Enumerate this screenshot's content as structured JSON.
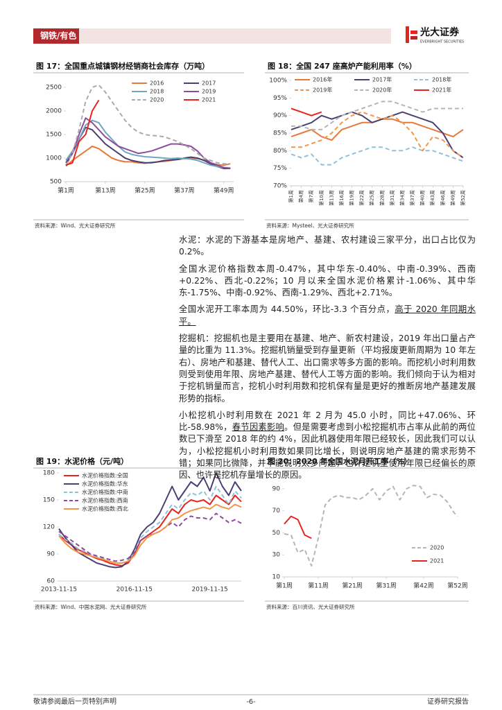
{
  "header": {
    "section": "钢铁/有色",
    "logo": "光大证券",
    "logo_en": "EVERBRIGHT SECURITIES"
  },
  "chart_data": [
    {
      "type": "line",
      "title": "图 17：全国重点城镇钢材经销商社会库存（万吨）",
      "source": "资料来源：Wind、光大证券研究所",
      "legend": "upper right",
      "x": [
        1,
        3,
        5,
        7,
        9,
        11,
        13,
        15,
        17,
        19,
        21,
        23,
        25,
        27,
        29,
        31,
        33,
        35,
        37,
        39,
        41,
        43,
        45,
        47,
        49,
        51
      ],
      "xlim": [
        1,
        52
      ],
      "xticks": [
        {
          "value": 1,
          "label": "第1周"
        },
        {
          "value": 13,
          "label": "第13周"
        },
        {
          "value": 25,
          "label": "第25周"
        },
        {
          "value": 37,
          "label": "第37周"
        },
        {
          "value": 49,
          "label": "第49周"
        }
      ],
      "ylim": [
        500,
        2500
      ],
      "yticks": [
        500,
        1000,
        1500,
        2000,
        2500
      ],
      "series": [
        {
          "name": "2016",
          "color": "#e8773a",
          "values": [
            830,
            950,
            1050,
            1150,
            1250,
            1200,
            1100,
            1000,
            950,
            920,
            920,
            900,
            890,
            910,
            920,
            930,
            950,
            970,
            990,
            1000,
            990,
            960,
            900,
            860,
            850,
            880
          ]
        },
        {
          "name": "2017",
          "color": "#4b3f72",
          "values": [
            900,
            1100,
            1400,
            1650,
            1600,
            1450,
            1300,
            1200,
            1100,
            1000,
            950,
            920,
            900,
            900,
            920,
            950,
            960,
            970,
            1000,
            1020,
            1000,
            950,
            880,
            820,
            780,
            780
          ]
        },
        {
          "name": "2018",
          "color": "#6fa6c0",
          "values": [
            950,
            1150,
            1400,
            1700,
            1800,
            1750,
            1550,
            1400,
            1250,
            1130,
            1080,
            1050,
            1030,
            1020,
            1010,
            1000,
            990,
            1000,
            990,
            980,
            950,
            900,
            850,
            820,
            800,
            790
          ]
        },
        {
          "name": "2019",
          "color": "#8e4b9e",
          "values": [
            850,
            1100,
            1500,
            1850,
            1750,
            1600,
            1450,
            1350,
            1250,
            1200,
            1150,
            1100,
            1120,
            1150,
            1200,
            1250,
            1300,
            1300,
            1280,
            1250,
            1150,
            1000,
            900,
            850,
            800,
            780
          ]
        },
        {
          "name": "2020",
          "color": "#aaaaaa",
          "dashed": true,
          "values": [
            850,
            1100,
            1600,
            2200,
            2500,
            2550,
            2400,
            2200,
            2000,
            1800,
            1650,
            1550,
            1500,
            1480,
            1470,
            1450,
            1400,
            1350,
            1280,
            1200,
            1100,
            1000,
            950,
            900,
            880,
            880
          ]
        },
        {
          "name": "2021",
          "color": "#e8231e",
          "values": [
            850,
            900,
            1350,
            1500,
            2000,
            2230,
            null,
            null,
            null,
            null,
            null,
            null,
            null,
            null,
            null,
            null,
            null,
            null,
            null,
            null,
            null,
            null,
            null,
            null,
            null,
            null
          ]
        }
      ]
    },
    {
      "type": "line",
      "title": "图 18：全国 247 座高炉产能利用率（%）",
      "source": "资料来源：Mysteel、光大证券研究所",
      "legend": "upper right",
      "x": [
        1,
        4,
        7,
        10,
        13,
        16,
        19,
        22,
        25,
        28,
        31,
        34,
        37,
        40,
        43,
        46,
        49,
        52
      ],
      "xlim": [
        1,
        52
      ],
      "xticks": [
        {
          "value": 1,
          "label": "第1周"
        },
        {
          "value": 4,
          "label": "第4周"
        },
        {
          "value": 7,
          "label": "第7周"
        },
        {
          "value": 10,
          "label": "第10周"
        },
        {
          "value": 13,
          "label": "第13周"
        },
        {
          "value": 16,
          "label": "第16周"
        },
        {
          "value": 19,
          "label": "第19周"
        },
        {
          "value": 22,
          "label": "第22周"
        },
        {
          "value": 25,
          "label": "第25周"
        },
        {
          "value": 28,
          "label": "第28周"
        },
        {
          "value": 31,
          "label": "第31周"
        },
        {
          "value": 34,
          "label": "第34周"
        },
        {
          "value": 37,
          "label": "第37周"
        },
        {
          "value": 40,
          "label": "第40周"
        },
        {
          "value": 43,
          "label": "第43周"
        },
        {
          "value": 46,
          "label": "第46周"
        },
        {
          "value": 49,
          "label": "第49周"
        },
        {
          "value": 52,
          "label": "第52周"
        }
      ],
      "ylim": [
        70,
        100
      ],
      "yticks": [
        {
          "value": 70,
          "label": "70%"
        },
        {
          "value": 75,
          "label": "75%"
        },
        {
          "value": 80,
          "label": "80%"
        },
        {
          "value": 85,
          "label": "85%"
        },
        {
          "value": 90,
          "label": "90%"
        },
        {
          "value": 95,
          "label": "95%"
        },
        {
          "value": 100,
          "label": "100%"
        }
      ],
      "series": [
        {
          "name": "2016年",
          "color": "#e8773a",
          "values": [
            84,
            85,
            86,
            84,
            83,
            86,
            87,
            88,
            88,
            89,
            89,
            88,
            88,
            87,
            86,
            85,
            84,
            86
          ]
        },
        {
          "name": "2017年",
          "color": "#4b3f72",
          "values": [
            86,
            87,
            88,
            90,
            89,
            90,
            91,
            90,
            88,
            89,
            90,
            91,
            90,
            89,
            88,
            85,
            80,
            78
          ]
        },
        {
          "name": "2018年",
          "color": "#8fc0dc",
          "dashed": true,
          "values": [
            79,
            78,
            79,
            76,
            76,
            78,
            79,
            80,
            81,
            81,
            80,
            80,
            81,
            80,
            80,
            79,
            78,
            77
          ]
        },
        {
          "name": "2019年",
          "color": "#f0964a",
          "dashed": true,
          "values": [
            81,
            81,
            82,
            83,
            85,
            88,
            90,
            91,
            90,
            89,
            90,
            88,
            85,
            80,
            84,
            83,
            80,
            78
          ]
        },
        {
          "name": "2020年",
          "color": "#b5b5b5",
          "dashed": true,
          "values": [
            87,
            87,
            86,
            86,
            88,
            90,
            91,
            92,
            93,
            94,
            94,
            93,
            92,
            91,
            92,
            92,
            92,
            92
          ]
        },
        {
          "name": "2021年",
          "color": "#e8231e",
          "values": [
            92,
            91,
            90,
            91,
            null,
            null,
            null,
            null,
            null,
            null,
            null,
            null,
            null,
            null,
            null,
            null,
            null,
            null
          ]
        }
      ]
    },
    {
      "type": "line",
      "title": "图 19：水泥价格（元/吨）",
      "source": "资料来源：Wind、中国水泥网、光大证券研究所",
      "legend": "upper left",
      "categories": [
        "2013-11-15",
        null,
        null,
        null,
        null,
        null,
        null,
        null,
        null,
        null,
        null,
        null,
        "2016-11-15",
        null,
        null,
        null,
        null,
        null,
        null,
        null,
        null,
        null,
        null,
        null,
        "2019-11-15",
        null,
        null,
        null,
        null,
        null
      ],
      "ylim": [
        60,
        180
      ],
      "yticks": [
        60,
        90,
        120,
        150,
        180
      ],
      "series": [
        {
          "name": "水泥价格指数:全国",
          "color": "#e8231e",
          "values": [
            112,
            105,
            100,
            95,
            92,
            88,
            85,
            83,
            80,
            78,
            77,
            80,
            90,
            105,
            110,
            115,
            120,
            130,
            140,
            135,
            145,
            150,
            148,
            150,
            145,
            155,
            150,
            145,
            155,
            148
          ]
        },
        {
          "name": "水泥价格指数:华东",
          "color": "#4b3f72",
          "values": [
            118,
            108,
            100,
            92,
            88,
            84,
            80,
            78,
            76,
            75,
            76,
            82,
            95,
            112,
            120,
            125,
            135,
            150,
            165,
            150,
            160,
            170,
            165,
            175,
            160,
            180,
            165,
            155,
            170,
            160
          ]
        },
        {
          "name": "水泥价格指数:中南",
          "color": "#8fc0dc",
          "dashed": true,
          "values": [
            112,
            106,
            102,
            96,
            93,
            90,
            87,
            85,
            82,
            80,
            80,
            82,
            92,
            108,
            115,
            120,
            125,
            135,
            145,
            140,
            150,
            158,
            155,
            160,
            150,
            165,
            155,
            145,
            160,
            152
          ]
        },
        {
          "name": "水泥价格指数:西南",
          "color": "#8e4b9e",
          "dashed": true,
          "values": [
            115,
            110,
            105,
            100,
            95,
            90,
            88,
            86,
            84,
            82,
            83,
            85,
            92,
            105,
            110,
            112,
            115,
            120,
            125,
            120,
            128,
            132,
            130,
            130,
            128,
            135,
            130,
            125,
            128,
            124
          ]
        },
        {
          "name": "水泥价格指数:西北",
          "color": "#f0964a",
          "values": [
            110,
            102,
            96,
            92,
            90,
            88,
            86,
            84,
            82,
            80,
            80,
            82,
            88,
            100,
            108,
            112,
            115,
            120,
            128,
            130,
            135,
            138,
            140,
            142,
            140,
            145,
            142,
            140,
            145,
            142
          ]
        }
      ]
    },
    {
      "type": "line",
      "title": "图 20：2020 年全国水泥月开工率（%）",
      "source": "资料来源：百川资讯、光大证券研究所",
      "legend": "lower right",
      "x": [
        1,
        3,
        5,
        7,
        9,
        11,
        13,
        15,
        17,
        19,
        21,
        23,
        25,
        27,
        29,
        31,
        33,
        35,
        37,
        39,
        41,
        43,
        45,
        47,
        49,
        51,
        52
      ],
      "xlim": [
        1,
        52
      ],
      "xticks": [
        {
          "value": 1,
          "label": "第1周"
        },
        {
          "value": 11,
          "label": "第11周"
        },
        {
          "value": 21,
          "label": "第21周"
        },
        {
          "value": 31,
          "label": "第31周"
        },
        {
          "value": 42,
          "label": "第42周"
        },
        {
          "value": 52,
          "label": "第52周"
        }
      ],
      "ylim": [
        10,
        100
      ],
      "yticks": [
        10,
        30,
        50,
        70,
        90
      ],
      "series": [
        {
          "name": "2020",
          "color": "#b5b5b5",
          "dashed": true,
          "values": [
            49,
            48,
            32,
            35,
            20,
            45,
            75,
            82,
            84,
            82,
            82,
            80,
            84,
            90,
            80,
            88,
            92,
            80,
            90,
            93,
            92,
            82,
            85,
            84,
            78,
            68,
            65
          ]
        },
        {
          "name": "2021",
          "color": "#e8231e",
          "values": [
            58,
            65,
            62,
            48,
            45,
            null,
            null,
            null,
            null,
            null,
            null,
            null,
            null,
            null,
            null,
            null,
            null,
            null,
            null,
            null,
            null,
            null,
            null,
            null,
            null,
            null,
            null
          ]
        }
      ]
    }
  ],
  "body": {
    "paragraphs": [
      [
        {
          "text": "水泥：水泥的下游基本是房地产、基建、农村建设三家平分，出口占比仅为 0.2%。"
        }
      ],
      [
        {
          "text": "全国水泥价格指数本周-0.47%，其中华东-0.40%、中南-0.39%、西南+0.22%、西北-0.22%；10 月以来全国水泥价格累计-1.06%、其中华东-1.75%、中南-0.92%、西南-1.29%、西北+2.71%。"
        }
      ],
      [
        {
          "text": "全国水泥开工率本周为 44.50%，环比-3.3 个百分点，"
        },
        {
          "text": "高于 2020 年同期水平。",
          "underline": true
        }
      ],
      [
        {
          "text": "挖掘机：挖掘机也是主要用在基建、地产、新农村建设，2019 年出口量占产量的比重为 11.3%。挖掘机销量受到存量更新（平均报废更新周期为 10 年左右）、房地产和基建、替代人工、出口需求等多方面的影响。而挖机小时利用数则受到使用年限、房地产基建、替代人工等方面的影响。我们倾向于认为相对于挖机销量而言，挖机小时利用数和挖机保有量是更好的推断房地产基建发展形势的指标。"
        }
      ],
      [
        {
          "text": "小松挖机小时利用数在 2021 年 2 月为 45.0 小时，同比+47.06%、环比-58.98%，"
        },
        {
          "text": "春节因素影响",
          "underline": true
        },
        {
          "text": "。但是需要考虑到小松挖掘机市占率从此前的两位数已下滑至 2018 年的约 4%，因此机器使用年限已经较长，因此我们可以认为，小松挖掘机小时利用数如果同比增长，则说明房地产基建的需求形势不错；如果同比微降，并不能说明太多问题，也许是机型使用年限已经偏长的原因、也许是挖机存量增长的原因。"
        }
      ]
    ]
  },
  "footer": {
    "left": "敬请参阅最后一页特别声明",
    "page": "-6-",
    "right": "证券研究报告"
  }
}
